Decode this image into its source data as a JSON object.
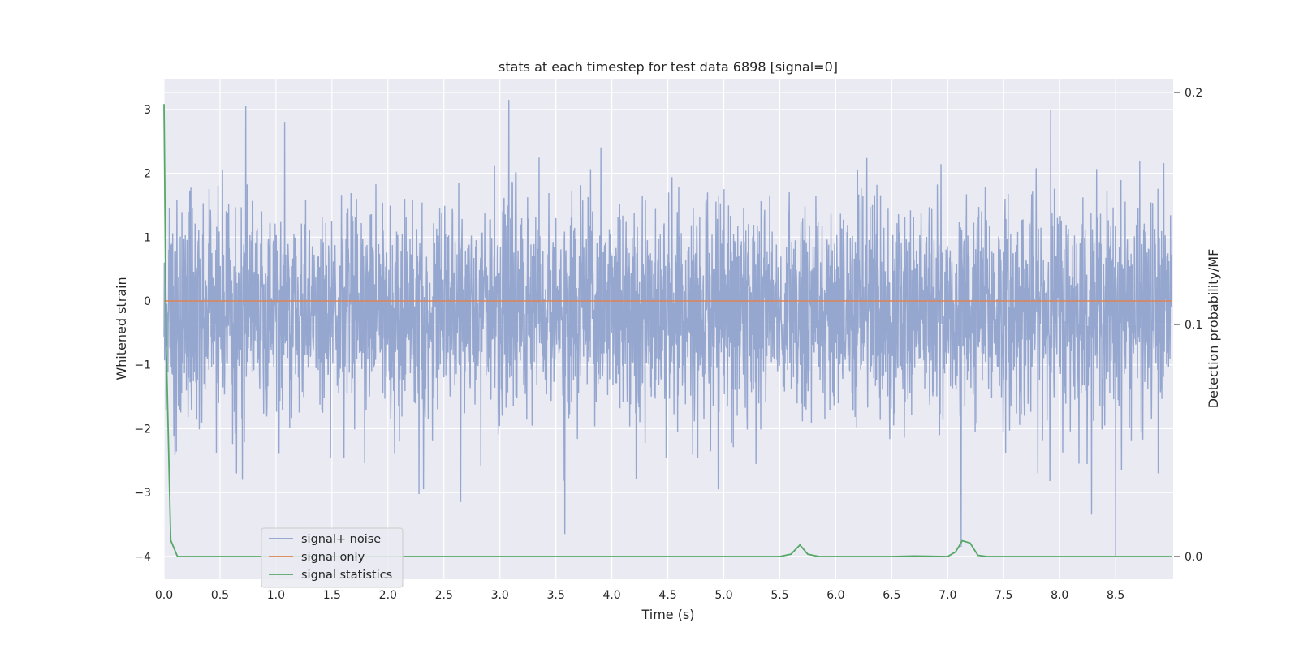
{
  "chart_data": {
    "type": "line",
    "title": "stats at each timestep for test data 6898 [signal=0]",
    "xlabel": "Time (s)",
    "ylabel": "Whitened strain",
    "y2label": "Detection probability/MF",
    "xlim": [
      0,
      9.0
    ],
    "ylim": [
      -4.35,
      3.45
    ],
    "y2lim": [
      -0.0093,
      0.2107
    ],
    "xticks": [
      "0.0",
      "0.5",
      "1.0",
      "1.5",
      "2.0",
      "2.5",
      "3.0",
      "3.5",
      "4.0",
      "4.5",
      "5.0",
      "5.5",
      "6.0",
      "6.5",
      "7.0",
      "7.5",
      "8.0",
      "8.5"
    ],
    "yticks": [
      "3",
      "2",
      "1",
      "0",
      "−1",
      "−2",
      "−3",
      "−4"
    ],
    "y2ticks": [
      "0.2",
      "0.1",
      "0.0"
    ],
    "grid": true,
    "legend_position": "lower-left",
    "colors": {
      "noise": "#8c9fcb",
      "signal": "#dd8452",
      "stats": "#55a868",
      "background": "#eaeaf2"
    },
    "series": [
      {
        "name": "signal+ noise",
        "axis": "left",
        "style": "noise",
        "sample_rate_hz": 400,
        "std": 0.85,
        "max": 3.15,
        "min": -4.0,
        "peaks": [
          [
            0.73,
            3.05
          ],
          [
            3.08,
            3.15
          ],
          [
            7.92,
            3.0
          ],
          [
            2.65,
            -3.15
          ],
          [
            3.58,
            -3.65
          ],
          [
            7.12,
            -3.85
          ],
          [
            8.5,
            -4.0
          ],
          [
            0.7,
            -2.8
          ],
          [
            4.95,
            -2.95
          ],
          [
            8.88,
            -2.7
          ]
        ]
      },
      {
        "name": "signal only",
        "axis": "left",
        "x": [
          0,
          9.0
        ],
        "y": [
          0,
          0
        ]
      },
      {
        "name": "signal statistics",
        "axis": "right",
        "x": [
          0,
          0.02,
          0.06,
          0.12,
          5.5,
          5.6,
          5.68,
          5.75,
          5.85,
          6.5,
          6.7,
          7.0,
          7.07,
          7.13,
          7.2,
          7.27,
          7.35,
          9.0
        ],
        "y": [
          0.195,
          0.09,
          0.007,
          0.0,
          0.0,
          0.001,
          0.005,
          0.001,
          0.0,
          0.0,
          0.0002,
          0.0,
          0.002,
          0.0068,
          0.0058,
          0.0005,
          0.0,
          0.0
        ]
      }
    ]
  }
}
